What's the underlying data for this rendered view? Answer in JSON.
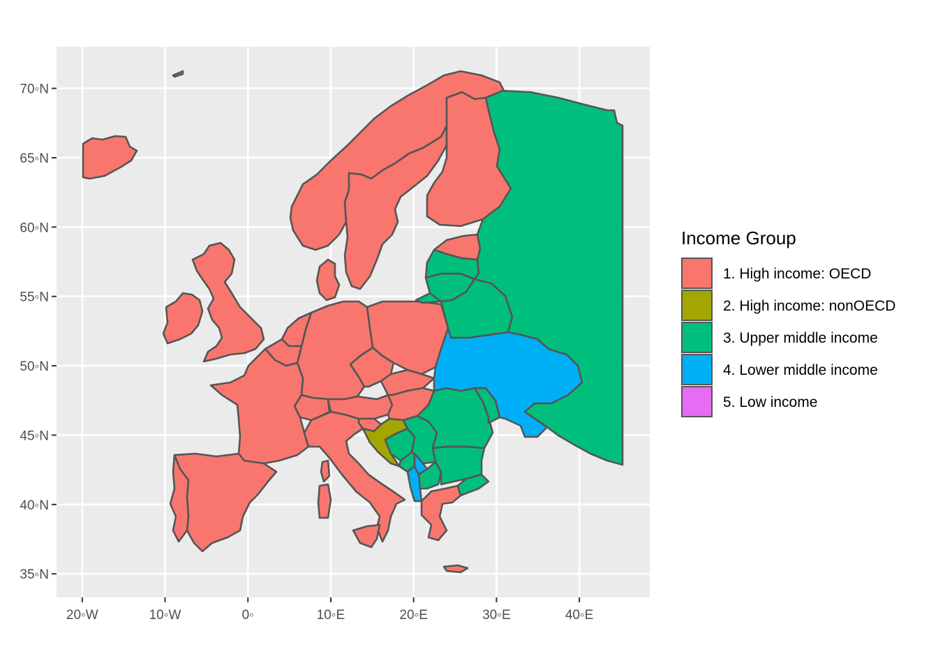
{
  "map": {
    "x_ticks": [
      {
        "lon": -20,
        "label": "20◦W"
      },
      {
        "lon": -10,
        "label": "10◦W"
      },
      {
        "lon": 0,
        "label": "0◦"
      },
      {
        "lon": 10,
        "label": "10◦E"
      },
      {
        "lon": 20,
        "label": "20◦E"
      },
      {
        "lon": 30,
        "label": "30◦E"
      },
      {
        "lon": 40,
        "label": "40◦E"
      }
    ],
    "y_ticks": [
      {
        "lat": 70,
        "label": "70◦N"
      },
      {
        "lat": 65,
        "label": "65◦N"
      },
      {
        "lat": 60,
        "label": "60◦N"
      },
      {
        "lat": 55,
        "label": "55◦N"
      },
      {
        "lat": 50,
        "label": "50◦N"
      },
      {
        "lat": 45,
        "label": "45◦N"
      },
      {
        "lat": 40,
        "label": "40◦N"
      },
      {
        "lat": 35,
        "label": "35◦N"
      }
    ],
    "lon_range": [
      -23.1,
      48.5
    ],
    "lat_range": [
      33.3,
      73.0
    ],
    "panel_background": "#ebebeb",
    "grid_color": "#ffffff",
    "border_color": "#555555"
  },
  "legend": {
    "title": "Income Group",
    "items": [
      {
        "key": "high_oecd",
        "label": "1. High income: OECD",
        "color": "#F8766D"
      },
      {
        "key": "high_nonoecd",
        "label": "2. High income: nonOECD",
        "color": "#A3A500"
      },
      {
        "key": "upper_middle",
        "label": "3. Upper middle income",
        "color": "#00BF7D"
      },
      {
        "key": "lower_middle",
        "label": "4. Lower middle income",
        "color": "#00B0F6"
      },
      {
        "key": "low",
        "label": "5. Low income",
        "color": "#E76BF3"
      }
    ]
  }
}
